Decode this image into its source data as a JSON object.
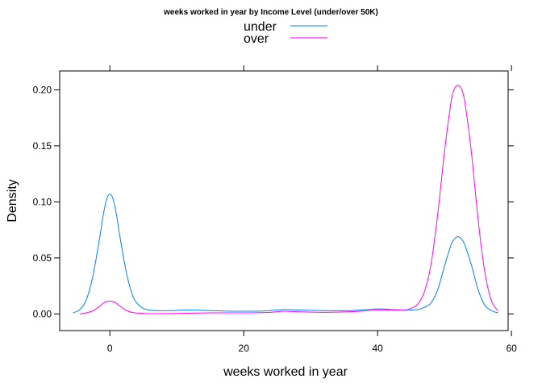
{
  "chart_data": {
    "type": "line",
    "title": "weeks worked in year by Income Level (under/over 50K)",
    "xlabel": "weeks worked in year",
    "ylabel": "Density",
    "xlim": [
      -7.5,
      59.5
    ],
    "ylim": [
      -0.0148,
      0.2168
    ],
    "x_ticks": [
      0,
      20,
      40,
      60
    ],
    "x_tick_labels": [
      "0",
      "20",
      "40",
      "60"
    ],
    "y_ticks": [
      0.0,
      0.05,
      0.1,
      0.15,
      0.2
    ],
    "y_tick_labels": [
      "0.00",
      "0.05",
      "0.10",
      "0.15",
      "0.20"
    ],
    "grid": false,
    "legend_position": "top",
    "series": [
      {
        "name": "under",
        "color": "#0080ff",
        "x": [
          -5.5,
          -4.5,
          -3.5,
          -2.5,
          -1.5,
          -1,
          -0.5,
          0,
          0.5,
          1,
          1.5,
          2.5,
          3.5,
          4.5,
          5.5,
          7,
          9,
          12,
          15,
          18,
          22,
          24,
          26,
          28,
          32,
          36,
          40,
          42,
          44,
          46,
          47,
          48,
          49,
          50,
          51,
          51.5,
          52,
          52.5,
          53,
          54,
          55,
          56,
          57,
          58
        ],
        "values": [
          0.001,
          0.004,
          0.013,
          0.035,
          0.069,
          0.088,
          0.102,
          0.107,
          0.102,
          0.088,
          0.069,
          0.036,
          0.015,
          0.007,
          0.004,
          0.003,
          0.003,
          0.0035,
          0.003,
          0.0025,
          0.0025,
          0.003,
          0.004,
          0.0035,
          0.003,
          0.003,
          0.0045,
          0.004,
          0.0035,
          0.004,
          0.006,
          0.01,
          0.022,
          0.043,
          0.062,
          0.067,
          0.069,
          0.067,
          0.062,
          0.044,
          0.022,
          0.008,
          0.003,
          0.001
        ]
      },
      {
        "name": "over",
        "color": "#ff00ff",
        "x": [
          -4.5,
          -3.5,
          -2.5,
          -1.5,
          -1,
          -0.5,
          0,
          0.5,
          1,
          1.5,
          2.5,
          3.5,
          5,
          7,
          10,
          15,
          20,
          24,
          26,
          28,
          32,
          36,
          40,
          42,
          44,
          45,
          46,
          47,
          48,
          49,
          50,
          51,
          51.5,
          52,
          52.5,
          53,
          54,
          55,
          56,
          57,
          58
        ],
        "values": [
          0.0,
          0.001,
          0.003,
          0.007,
          0.0095,
          0.011,
          0.0115,
          0.011,
          0.0095,
          0.007,
          0.003,
          0.0012,
          0.0005,
          0.0003,
          0.0005,
          0.001,
          0.001,
          0.0015,
          0.0025,
          0.002,
          0.0015,
          0.002,
          0.0035,
          0.0035,
          0.0035,
          0.005,
          0.009,
          0.02,
          0.045,
          0.09,
          0.145,
          0.19,
          0.201,
          0.204,
          0.201,
          0.19,
          0.145,
          0.085,
          0.038,
          0.012,
          0.003
        ]
      }
    ]
  }
}
